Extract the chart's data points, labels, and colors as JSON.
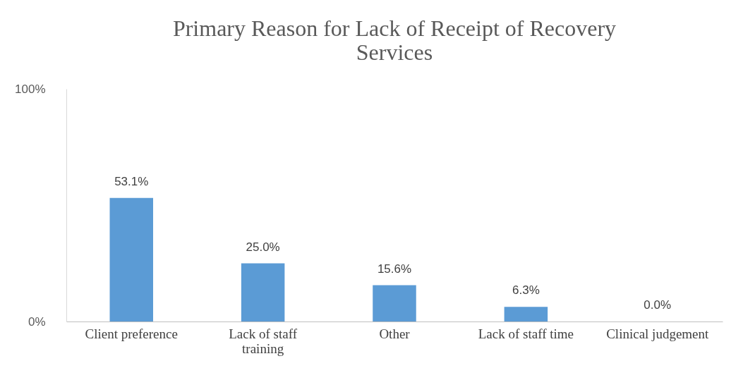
{
  "chart_data": {
    "type": "bar",
    "title": [
      "Primary Reason for Lack of Receipt of Recovery",
      "Services"
    ],
    "categories": [
      "Client preference",
      "Lack of staff training",
      "Other",
      "Lack of staff time",
      "Clinical judgement"
    ],
    "values": [
      53.1,
      25.0,
      15.6,
      6.3,
      0.0
    ],
    "value_labels": [
      "53.1%",
      "25.0%",
      "15.6%",
      "6.3%",
      "0.0%"
    ],
    "color": "#5b9bd5",
    "ylim": [
      0,
      100
    ],
    "yticks": [
      {
        "value": 0,
        "label": "0%"
      },
      {
        "value": 100,
        "label": "100%"
      }
    ],
    "grid": false
  }
}
